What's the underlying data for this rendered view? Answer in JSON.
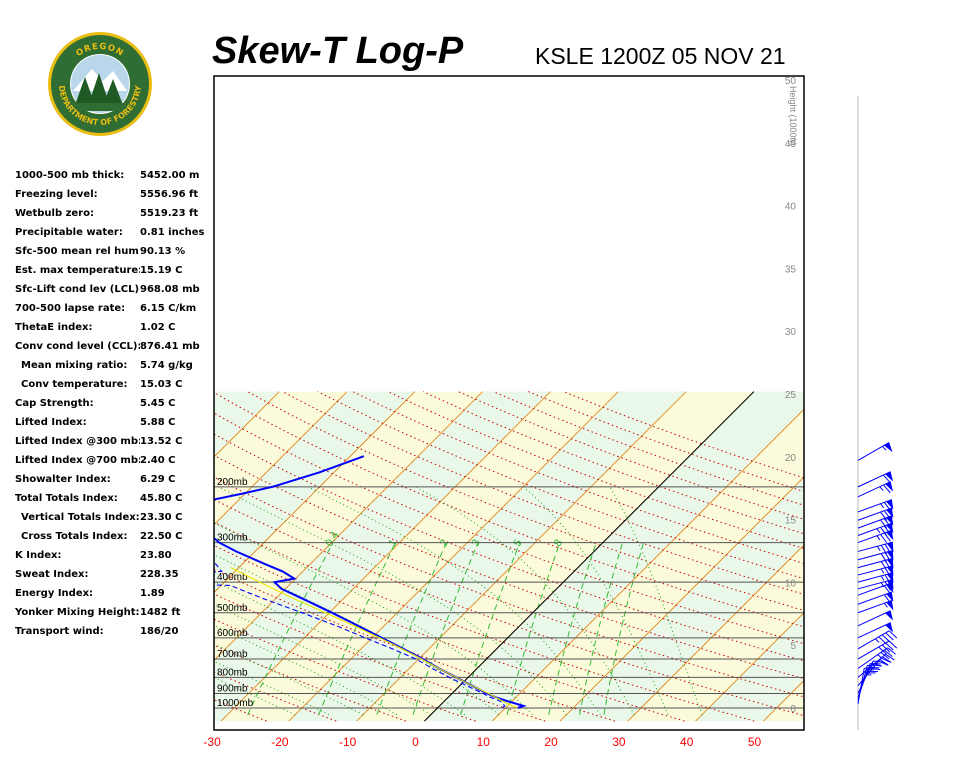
{
  "header": {
    "title": "Skew-T Log-P",
    "subtitle": "KSLE 1200Z 05 NOV 21"
  },
  "logo": {
    "top_text": "OREGON",
    "ring_text": "DEPARTMENT OF FORESTRY",
    "colors": {
      "ring": "#2f6d33",
      "border": "#e9bd12",
      "text": "#e9bd12"
    }
  },
  "indices": [
    {
      "label": "1000-500 mb thick:",
      "value": "5452.00 m",
      "indent": false
    },
    {
      "label": "Freezing level:",
      "value": "5556.96 ft",
      "indent": false
    },
    {
      "label": "Wetbulb zero:",
      "value": "5519.23 ft",
      "indent": false
    },
    {
      "label": "Precipitable water:",
      "value": "0.81 inches",
      "indent": false
    },
    {
      "label": "Sfc-500 mean rel hum:",
      "value": "90.13 %",
      "indent": false
    },
    {
      "label": "Est. max temperature:",
      "value": "15.19 C",
      "indent": false
    },
    {
      "label": "Sfc-Lift cond lev (LCL):",
      "value": "968.08 mb",
      "indent": false
    },
    {
      "label": "700-500 lapse rate:",
      "value": "6.15 C/km",
      "indent": false
    },
    {
      "label": "ThetaE index:",
      "value": "1.02 C",
      "indent": false
    },
    {
      "label": "Conv cond level (CCL):",
      "value": "876.41 mb",
      "indent": false
    },
    {
      "label": "Mean mixing ratio:",
      "value": "5.74 g/kg",
      "indent": true
    },
    {
      "label": "Conv temperature:",
      "value": "15.03 C",
      "indent": true
    },
    {
      "label": "Cap Strength:",
      "value": "5.45 C",
      "indent": false
    },
    {
      "label": "Lifted Index:",
      "value": "5.88 C",
      "indent": false
    },
    {
      "label": "Lifted Index @300 mb:",
      "value": "13.52 C",
      "indent": false
    },
    {
      "label": "Lifted Index @700 mb:",
      "value": "2.40 C",
      "indent": false
    },
    {
      "label": "Showalter Index:",
      "value": "6.29 C",
      "indent": false
    },
    {
      "label": "Total Totals Index:",
      "value": "45.80 C",
      "indent": false
    },
    {
      "label": "Vertical Totals Index:",
      "value": "23.30 C",
      "indent": true
    },
    {
      "label": "Cross Totals Index:",
      "value": "22.50 C",
      "indent": true
    },
    {
      "label": "K Index:",
      "value": "23.80",
      "indent": false
    },
    {
      "label": "Sweat Index:",
      "value": "228.35",
      "indent": false
    },
    {
      "label": "Energy Index:",
      "value": "1.89",
      "indent": false
    },
    {
      "label": "Yonker Mixing Height:",
      "value": "1482 ft",
      "indent": false
    },
    {
      "label": "Transport wind:",
      "value": "186/20",
      "indent": false
    }
  ],
  "chart_data": {
    "type": "line",
    "title": "Skew-T Log-P",
    "subtitle": "KSLE 1200Z 05 NOV 21",
    "xlabel": "",
    "ylabel": "",
    "x_ticks": [
      -30,
      -20,
      -10,
      0,
      10,
      20,
      30,
      40,
      50
    ],
    "pressure_levels": [
      200,
      300,
      400,
      500,
      600,
      700,
      800,
      900,
      1000
    ],
    "pressure_level_labels": [
      "200mb",
      "300mb",
      "400mb",
      "500mb",
      "600mb",
      "700mb",
      "800mb",
      "900mb",
      "1000mb"
    ],
    "height_axis_label": "Height (1000ft)",
    "height_ticks": [
      0,
      5,
      10,
      15,
      20,
      25,
      30,
      35,
      40,
      45,
      50
    ],
    "mixing_ratio_labels": [
      "0.4",
      "1",
      "2",
      "3",
      "5",
      "8"
    ],
    "ylim": [
      150,
      1050
    ],
    "xlim": [
      -32,
      52
    ],
    "log_pressure": true,
    "grid": true,
    "colors": {
      "temperature": "#0000ff",
      "dewpoint": "#0000ff",
      "parcel": "#e6e600",
      "isobars": "#555555",
      "isotherms": "#e07800",
      "dry_adiabats": "#cc0000",
      "moist_adiabats": "#009900",
      "mixing_ratio": "#33bb33",
      "band_green": "#eaf8ea",
      "band_yellow": "#fbfbdc",
      "tick_labels": "#ff0000",
      "wind_barbs": "#0000ff"
    },
    "series": [
      {
        "name": "Temperature",
        "style": "solid",
        "pressure": [
          1000,
          985,
          950,
          925,
          900,
          850,
          800,
          750,
          700,
          650,
          600,
          550,
          500,
          450,
          420,
          400,
          390,
          370,
          350,
          320,
          300,
          270,
          250,
          230,
          225,
          220,
          210,
          200,
          180,
          160
        ],
        "temp": [
          11.8,
          12.4,
          9.2,
          7.0,
          5.2,
          1.8,
          -1.8,
          -5.6,
          -9.4,
          -13.8,
          -18.6,
          -23.8,
          -29.6,
          -36.2,
          -40.6,
          -42.6,
          -40.2,
          -43.0,
          -46.8,
          -52.8,
          -56.6,
          -61.2,
          -64.8,
          -68.0,
          -67.6,
          -64.0,
          -60.4,
          -57.0,
          -52.2,
          -48.0
        ]
      },
      {
        "name": "Dewpoint",
        "style": "dashed",
        "pressure": [
          1000,
          985,
          950,
          925,
          900,
          850,
          800,
          750,
          700,
          650,
          600,
          550,
          500,
          450,
          410,
          405,
          400,
          395,
          390,
          380,
          370,
          350,
          330,
          300,
          280,
          270,
          250,
          240,
          230,
          210,
          200,
          180,
          160
        ],
        "temp": [
          9.6,
          9.6,
          8.2,
          6.2,
          4.6,
          1.0,
          -2.8,
          -6.6,
          -10.4,
          -15.4,
          -21.0,
          -27.0,
          -34.0,
          -42.0,
          -48.6,
          -56.0,
          -66.0,
          -75.0,
          -70.0,
          -58.0,
          -52.0,
          -54.0,
          -57.0,
          -60.0,
          -67.0,
          -70.0,
          -72.0,
          -70.0,
          -75.0,
          -78.0,
          -81.0,
          -78.0,
          -74.0
        ]
      },
      {
        "name": "Parcel",
        "style": "solid",
        "pressure": [
          1000,
          968,
          940,
          900,
          850,
          800,
          750,
          700,
          650,
          600,
          550,
          500,
          450,
          420,
          400,
          380,
          360
        ],
        "temp": [
          11.8,
          9.6,
          7.9,
          5.4,
          1.8,
          -1.8,
          -5.6,
          -9.6,
          -14.0,
          -18.9,
          -24.4,
          -30.6,
          -37.5,
          -41.8,
          -44.8,
          -47.9,
          -51.2
        ]
      }
    ],
    "wind_barbs": [
      {
        "pressure": 970,
        "direction": 190,
        "speed_kt": 20
      },
      {
        "pressure": 945,
        "direction": 195,
        "speed_kt": 30
      },
      {
        "pressure": 925,
        "direction": 200,
        "speed_kt": 35
      },
      {
        "pressure": 900,
        "direction": 205,
        "speed_kt": 30
      },
      {
        "pressure": 850,
        "direction": 220,
        "speed_kt": 25
      },
      {
        "pressure": 800,
        "direction": 230,
        "speed_kt": 30
      },
      {
        "pressure": 750,
        "direction": 235,
        "speed_kt": 35
      },
      {
        "pressure": 700,
        "direction": 240,
        "speed_kt": 40
      },
      {
        "pressure": 650,
        "direction": 240,
        "speed_kt": 45
      },
      {
        "pressure": 600,
        "direction": 245,
        "speed_kt": 50
      },
      {
        "pressure": 550,
        "direction": 245,
        "speed_kt": 50
      },
      {
        "pressure": 500,
        "direction": 250,
        "speed_kt": 55
      },
      {
        "pressure": 470,
        "direction": 250,
        "speed_kt": 60
      },
      {
        "pressure": 440,
        "direction": 250,
        "speed_kt": 60
      },
      {
        "pressure": 420,
        "direction": 255,
        "speed_kt": 65
      },
      {
        "pressure": 400,
        "direction": 255,
        "speed_kt": 65
      },
      {
        "pressure": 380,
        "direction": 255,
        "speed_kt": 65
      },
      {
        "pressure": 360,
        "direction": 255,
        "speed_kt": 70
      },
      {
        "pressure": 340,
        "direction": 255,
        "speed_kt": 70
      },
      {
        "pressure": 320,
        "direction": 255,
        "speed_kt": 75
      },
      {
        "pressure": 300,
        "direction": 250,
        "speed_kt": 75
      },
      {
        "pressure": 285,
        "direction": 250,
        "speed_kt": 75
      },
      {
        "pressure": 270,
        "direction": 250,
        "speed_kt": 70
      },
      {
        "pressure": 255,
        "direction": 250,
        "speed_kt": 70
      },
      {
        "pressure": 240,
        "direction": 250,
        "speed_kt": 65
      },
      {
        "pressure": 215,
        "direction": 245,
        "speed_kt": 65
      },
      {
        "pressure": 200,
        "direction": 245,
        "speed_kt": 60
      },
      {
        "pressure": 165,
        "direction": 240,
        "speed_kt": 55
      }
    ]
  }
}
